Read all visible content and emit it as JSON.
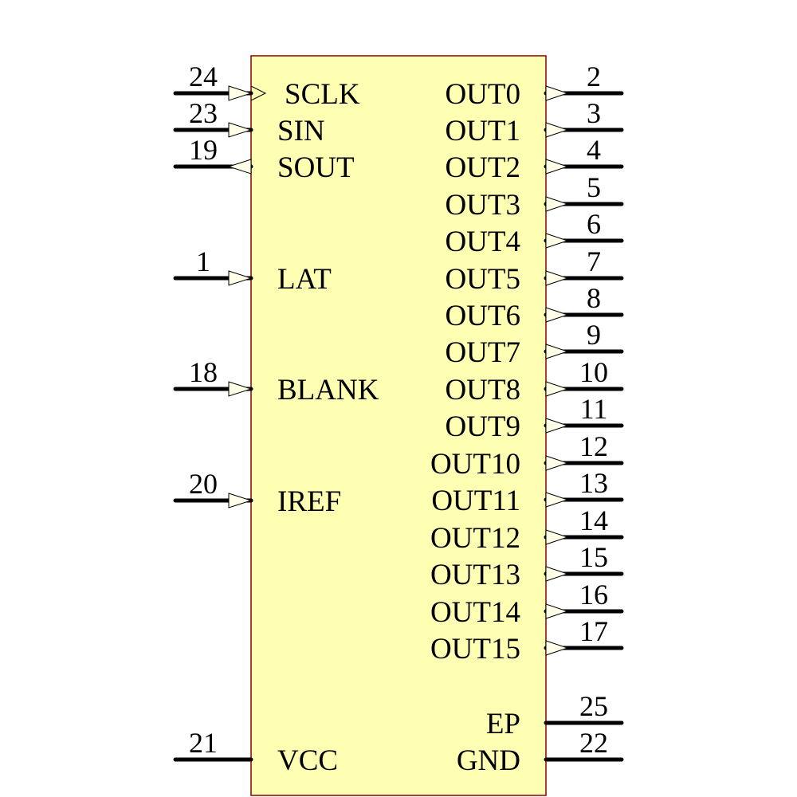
{
  "colors": {
    "body_fill": "#ffffb4",
    "body_stroke": "#8b0000",
    "pin": "#000000",
    "arrow_fill": "#ffffe8"
  },
  "left_pins": [
    {
      "number": "24",
      "label": "SCLK",
      "type": "input",
      "clock": true
    },
    {
      "number": "23",
      "label": "SIN",
      "type": "input"
    },
    {
      "number": "19",
      "label": "SOUT",
      "type": "output"
    },
    {
      "number": "1",
      "label": "LAT",
      "type": "input"
    },
    {
      "number": "18",
      "label": "BLANK",
      "type": "input"
    },
    {
      "number": "20",
      "label": "IREF",
      "type": "input"
    },
    {
      "number": "21",
      "label": "VCC",
      "type": "power"
    }
  ],
  "right_pins": [
    {
      "number": "2",
      "label": "OUT0",
      "type": "output"
    },
    {
      "number": "3",
      "label": "OUT1",
      "type": "output"
    },
    {
      "number": "4",
      "label": "OUT2",
      "type": "output"
    },
    {
      "number": "5",
      "label": "OUT3",
      "type": "output"
    },
    {
      "number": "6",
      "label": "OUT4",
      "type": "output"
    },
    {
      "number": "7",
      "label": "OUT5",
      "type": "output"
    },
    {
      "number": "8",
      "label": "OUT6",
      "type": "output"
    },
    {
      "number": "9",
      "label": "OUT7",
      "type": "output"
    },
    {
      "number": "10",
      "label": "OUT8",
      "type": "output"
    },
    {
      "number": "11",
      "label": "OUT9",
      "type": "output"
    },
    {
      "number": "12",
      "label": "OUT10",
      "type": "output"
    },
    {
      "number": "13",
      "label": "OUT11",
      "type": "output"
    },
    {
      "number": "14",
      "label": "OUT12",
      "type": "output"
    },
    {
      "number": "15",
      "label": "OUT13",
      "type": "output"
    },
    {
      "number": "16",
      "label": "OUT14",
      "type": "output"
    },
    {
      "number": "17",
      "label": "OUT15",
      "type": "output"
    },
    {
      "number": "25",
      "label": "EP",
      "type": "power"
    },
    {
      "number": "22",
      "label": "GND",
      "type": "power"
    }
  ]
}
